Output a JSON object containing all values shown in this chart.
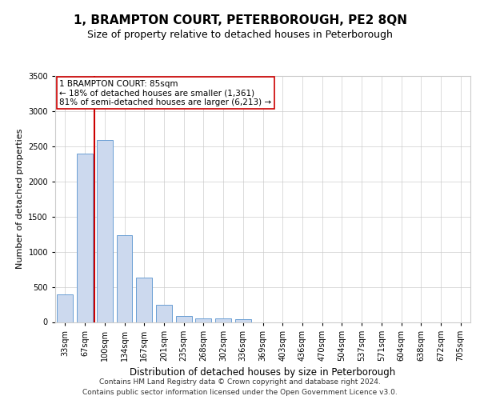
{
  "title": "1, BRAMPTON COURT, PETERBOROUGH, PE2 8QN",
  "subtitle": "Size of property relative to detached houses in Peterborough",
  "xlabel": "Distribution of detached houses by size in Peterborough",
  "ylabel": "Number of detached properties",
  "categories": [
    "33sqm",
    "67sqm",
    "100sqm",
    "134sqm",
    "167sqm",
    "201sqm",
    "235sqm",
    "268sqm",
    "302sqm",
    "336sqm",
    "369sqm",
    "403sqm",
    "436sqm",
    "470sqm",
    "504sqm",
    "537sqm",
    "571sqm",
    "604sqm",
    "638sqm",
    "672sqm",
    "705sqm"
  ],
  "values": [
    390,
    2400,
    2590,
    1240,
    635,
    250,
    90,
    55,
    55,
    40,
    0,
    0,
    0,
    0,
    0,
    0,
    0,
    0,
    0,
    0,
    0
  ],
  "bar_color": "#ccd9ee",
  "bar_edge_color": "#6b9fd4",
  "vline_color": "#cc0000",
  "vline_pos": 1.48,
  "annotation_text": "1 BRAMPTON COURT: 85sqm\n← 18% of detached houses are smaller (1,361)\n81% of semi-detached houses are larger (6,213) →",
  "annotation_box_color": "#ffffff",
  "annotation_box_edge_color": "#cc0000",
  "ylim": [
    0,
    3500
  ],
  "yticks": [
    0,
    500,
    1000,
    1500,
    2000,
    2500,
    3000,
    3500
  ],
  "footer_line1": "Contains HM Land Registry data © Crown copyright and database right 2024.",
  "footer_line2": "Contains public sector information licensed under the Open Government Licence v3.0.",
  "title_fontsize": 11,
  "subtitle_fontsize": 9,
  "ylabel_fontsize": 8,
  "xlabel_fontsize": 8.5,
  "tick_fontsize": 7,
  "annotation_fontsize": 7.5,
  "background_color": "#ffffff",
  "grid_color": "#cccccc"
}
